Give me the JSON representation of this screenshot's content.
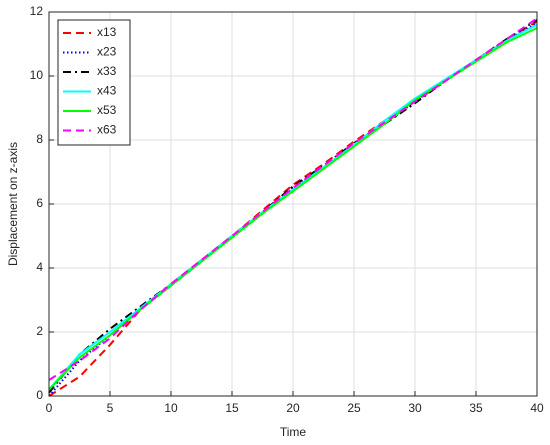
{
  "chart_data": {
    "type": "line",
    "xlabel": "Time",
    "ylabel": "Displacement on z-axis",
    "x": [
      0,
      2.5,
      5,
      7.5,
      10,
      12.5,
      15,
      17.5,
      20,
      22.5,
      25,
      27.5,
      30,
      32.5,
      35,
      37.5,
      40
    ],
    "series": [
      {
        "name": "x13",
        "color": "#ff0000",
        "linestyle": "--",
        "values": [
          0.0,
          0.6,
          1.6,
          2.7,
          3.5,
          4.25,
          5.0,
          5.8,
          6.6,
          7.25,
          7.95,
          8.6,
          9.2,
          9.85,
          10.5,
          11.15,
          11.7
        ]
      },
      {
        "name": "x23",
        "color": "#0000ff",
        "linestyle": ":",
        "values": [
          0.0,
          1.1,
          1.9,
          2.7,
          3.45,
          4.2,
          4.95,
          5.7,
          6.5,
          7.15,
          7.85,
          8.5,
          9.2,
          9.85,
          10.5,
          11.1,
          11.65
        ]
      },
      {
        "name": "x33",
        "color": "#000000",
        "linestyle": "-.",
        "values": [
          0.1,
          1.3,
          2.1,
          2.8,
          3.5,
          4.25,
          5.0,
          5.75,
          6.55,
          7.2,
          7.9,
          8.5,
          9.15,
          9.85,
          10.5,
          11.15,
          11.75
        ]
      },
      {
        "name": "x43",
        "color": "#00ffff",
        "linestyle": "-",
        "values": [
          0.2,
          1.3,
          2.0,
          2.75,
          3.5,
          4.25,
          5.0,
          5.75,
          6.45,
          7.15,
          7.85,
          8.6,
          9.3,
          9.9,
          10.5,
          11.1,
          11.6
        ]
      },
      {
        "name": "x53",
        "color": "#00ff00",
        "linestyle": "-",
        "values": [
          0.2,
          1.2,
          1.9,
          2.7,
          3.45,
          4.2,
          4.95,
          5.7,
          6.4,
          7.1,
          7.8,
          8.5,
          9.25,
          9.85,
          10.45,
          11.05,
          11.5
        ]
      },
      {
        "name": "x63",
        "color": "#ff00ff",
        "linestyle": "--",
        "values": [
          0.5,
          1.1,
          1.8,
          2.7,
          3.5,
          4.25,
          5.0,
          5.75,
          6.5,
          7.2,
          7.9,
          8.55,
          9.2,
          9.85,
          10.5,
          11.15,
          11.8
        ]
      }
    ],
    "xlim": [
      0,
      40
    ],
    "xticks": [
      0,
      5,
      10,
      15,
      20,
      25,
      30,
      35,
      40
    ],
    "ylim": [
      0,
      12
    ],
    "yticks": [
      0,
      2,
      4,
      6,
      8,
      10,
      12
    ],
    "grid": true,
    "legend": "upper left"
  }
}
